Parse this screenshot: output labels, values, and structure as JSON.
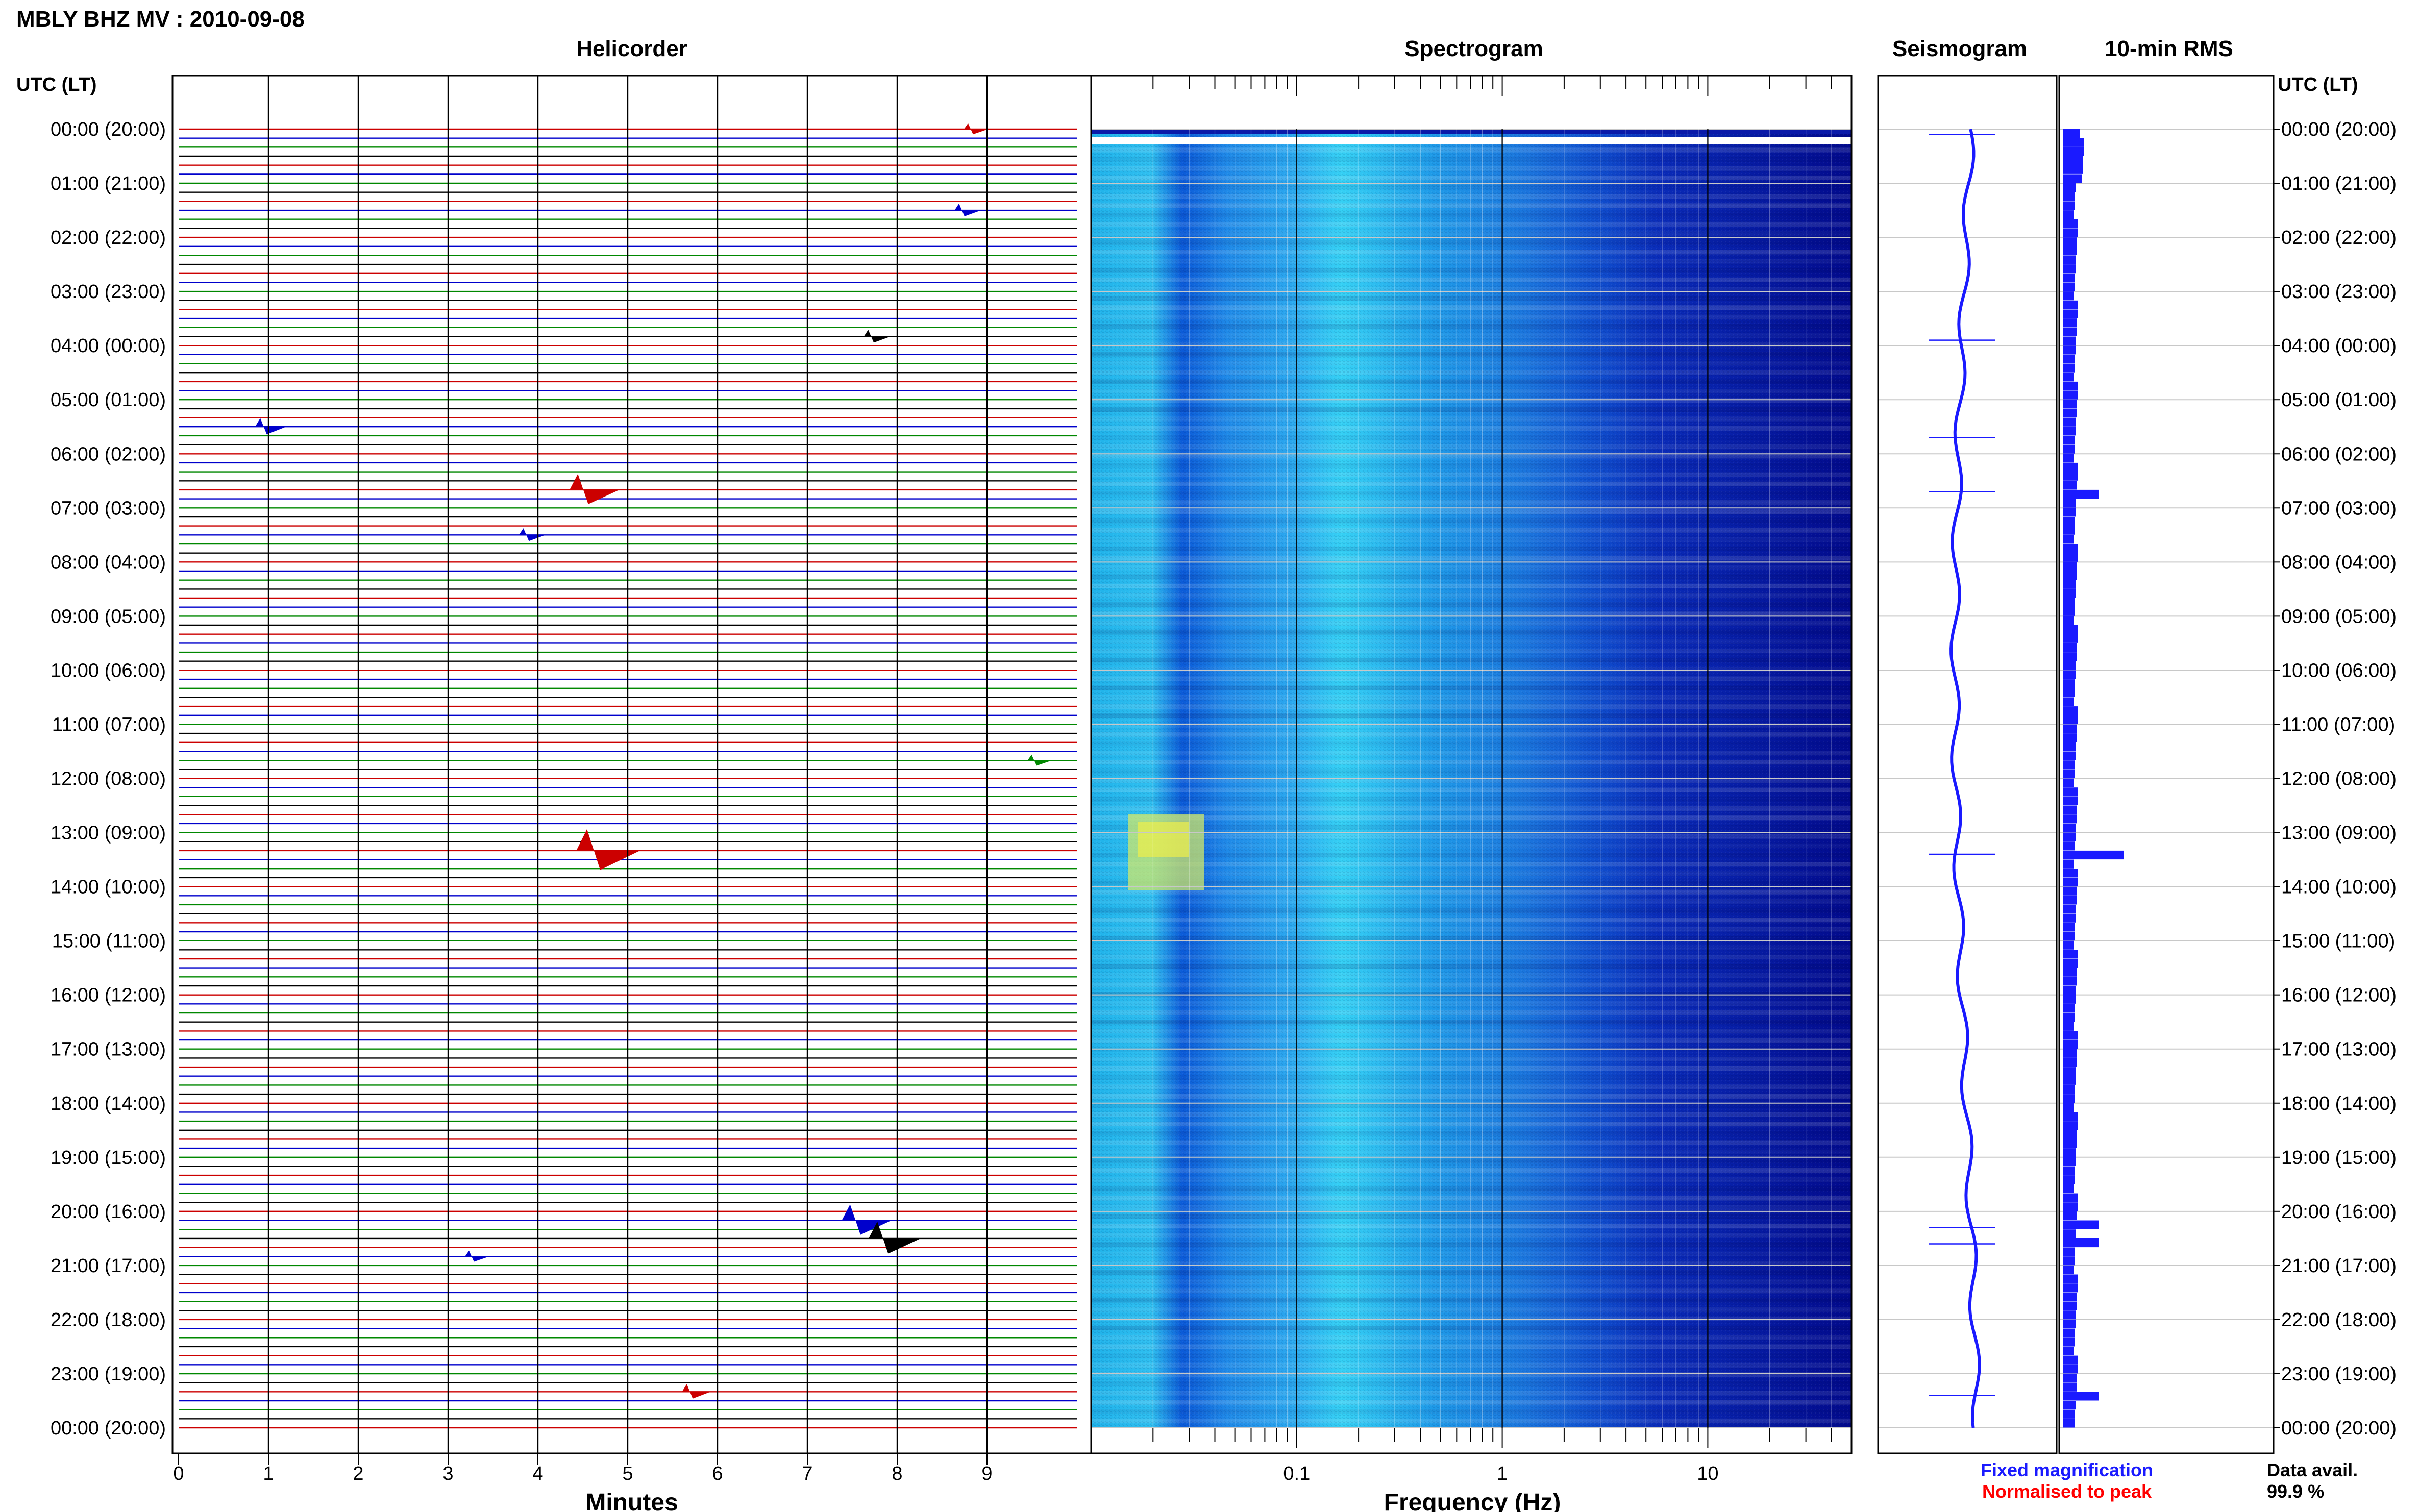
{
  "title": "MBLY BHZ MV : 2010-09-08",
  "panels": {
    "helicorder": "Helicorder",
    "spectrogram": "Spectrogram",
    "seismogram": "Seismogram",
    "rms": "10-min RMS"
  },
  "axis_time_label": "UTC (LT)",
  "time_ticks": [
    "00:00 (20:00)",
    "01:00 (21:00)",
    "02:00 (22:00)",
    "03:00 (23:00)",
    "04:00 (00:00)",
    "05:00 (01:00)",
    "06:00 (02:00)",
    "07:00 (03:00)",
    "08:00 (04:00)",
    "09:00 (05:00)",
    "10:00 (06:00)",
    "11:00 (07:00)",
    "12:00 (08:00)",
    "13:00 (09:00)",
    "14:00 (10:00)",
    "15:00 (11:00)",
    "16:00 (12:00)",
    "17:00 (13:00)",
    "18:00 (14:00)",
    "19:00 (15:00)",
    "20:00 (16:00)",
    "21:00 (17:00)",
    "22:00 (18:00)",
    "23:00 (19:00)",
    "00:00 (20:00)"
  ],
  "helicorder_xlabel": "Minutes",
  "minute_ticks": [
    "0",
    "1",
    "2",
    "3",
    "4",
    "5",
    "6",
    "7",
    "8",
    "9"
  ],
  "spectrogram_xlabel": "Frequency (Hz)",
  "freq_ticks": [
    "0.1",
    "1",
    "10"
  ],
  "legend": {
    "fixed": "Fixed magnification",
    "normalised": "Normalised to peak",
    "data_avail_label": "Data avail.",
    "data_avail_value": "99.9 %"
  },
  "colors": {
    "trace_cycle": [
      "#cc0000",
      "#0000cc",
      "#008800",
      "#000000"
    ],
    "seismogram": "#1a1aff",
    "rms": "#1a1aff",
    "fixed": "#1a1aff",
    "normalised": "#ff0000"
  },
  "chart_data": [
    {
      "type": "helicorder",
      "title": "Helicorder",
      "xlabel": "Minutes",
      "xlim": [
        0,
        10
      ],
      "rows_per_hour": 6,
      "events": [
        {
          "hour": 0.0,
          "minute": 8.7,
          "amp": 0.3
        },
        {
          "hour": 1.5,
          "minute": 8.6,
          "amp": 0.4
        },
        {
          "hour": 3.8,
          "minute": 7.6,
          "amp": 0.4
        },
        {
          "hour": 5.5,
          "minute": 0.9,
          "amp": 0.6
        },
        {
          "hour": 6.7,
          "minute": 4.4,
          "amp": 1.4
        },
        {
          "hour": 7.5,
          "minute": 3.8,
          "amp": 0.4
        },
        {
          "hour": 11.7,
          "minute": 9.4,
          "amp": 0.3
        },
        {
          "hour": 13.3,
          "minute": 4.5,
          "amp": 2.0
        },
        {
          "hour": 20.2,
          "minute": 7.4,
          "amp": 1.4
        },
        {
          "hour": 20.5,
          "minute": 7.7,
          "amp": 1.5
        },
        {
          "hour": 20.8,
          "minute": 3.2,
          "amp": 0.3
        },
        {
          "hour": 23.3,
          "minute": 5.6,
          "amp": 0.5
        }
      ]
    },
    {
      "type": "heatmap",
      "title": "Spectrogram",
      "xlabel": "Frequency (Hz)",
      "x_scale": "log",
      "xlim": [
        0.01,
        50
      ],
      "y_range_hours": [
        0,
        24
      ]
    },
    {
      "type": "line",
      "title": "Seismogram",
      "spikes_hours": [
        0.1,
        3.9,
        5.7,
        6.7,
        13.4,
        20.3,
        20.6,
        23.4
      ]
    },
    {
      "type": "bar",
      "title": "10-min RMS",
      "spikes_hours": [
        6.7,
        13.4,
        20.2,
        20.5,
        23.3
      ]
    }
  ]
}
